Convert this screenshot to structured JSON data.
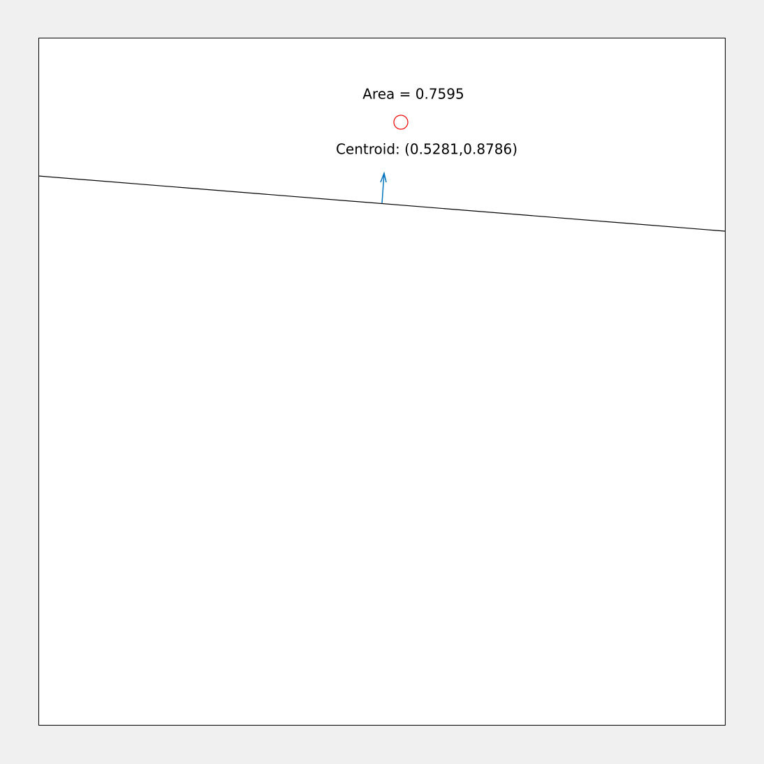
{
  "annotations": {
    "area": "Area = 0.7595",
    "centroid": "Centroid: (0.5281,0.8786)"
  }
}
